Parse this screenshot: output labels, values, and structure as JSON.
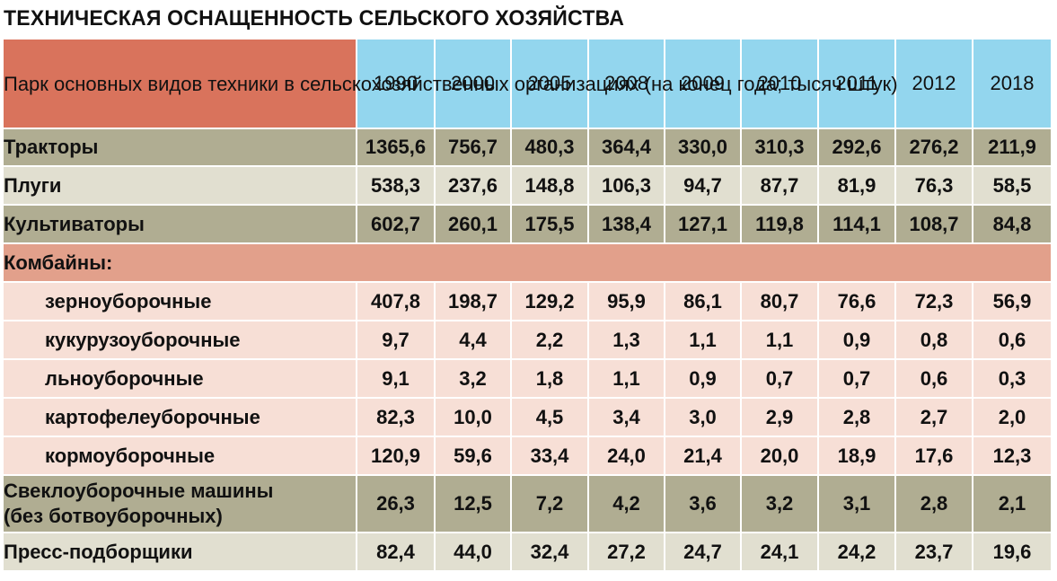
{
  "title": "ТЕХНИЧЕСКАЯ ОСНАЩЕННОСТЬ СЕЛЬСКОГО ХОЗЯЙСТВА",
  "table": {
    "header_label": "Парк основных видов техники в сельскохозяйственных организациях (на конец года; тысяч штук)",
    "years": [
      "1990",
      "2000",
      "2005",
      "2008",
      "2009",
      "2010",
      "2011",
      "2012",
      "2018"
    ],
    "rows": [
      {
        "label": "Тракторы",
        "values": [
          "1365,6",
          "756,7",
          "480,3",
          "364,4",
          "330,0",
          "310,3",
          "292,6",
          "276,2",
          "211,9"
        ]
      },
      {
        "label": "Плуги",
        "values": [
          "538,3",
          "237,6",
          "148,8",
          "106,3",
          "94,7",
          "87,7",
          "81,9",
          "76,3",
          "58,5"
        ]
      },
      {
        "label": "Культиваторы",
        "values": [
          "602,7",
          "260,1",
          "175,5",
          "138,4",
          "127,1",
          "119,8",
          "114,1",
          "108,7",
          "84,8"
        ]
      }
    ],
    "section_label": "Комбайны:",
    "sub_rows": [
      {
        "label": "зерноуборочные",
        "values": [
          "407,8",
          "198,7",
          "129,2",
          "95,9",
          "86,1",
          "80,7",
          "76,6",
          "72,3",
          "56,9"
        ]
      },
      {
        "label": "кукурузоуборочные",
        "values": [
          "9,7",
          "4,4",
          "2,2",
          "1,3",
          "1,1",
          "1,1",
          "0,9",
          "0,8",
          "0,6"
        ]
      },
      {
        "label": "льноуборочные",
        "values": [
          "9,1",
          "3,2",
          "1,8",
          "1,1",
          "0,9",
          "0,7",
          "0,7",
          "0,6",
          "0,3"
        ]
      },
      {
        "label": "картофелеуборочные",
        "values": [
          "82,3",
          "10,0",
          "4,5",
          "3,4",
          "3,0",
          "2,9",
          "2,8",
          "2,7",
          "2,0"
        ]
      },
      {
        "label": "кормоуборочные",
        "values": [
          "120,9",
          "59,6",
          "33,4",
          "24,0",
          "21,4",
          "20,0",
          "18,9",
          "17,6",
          "12,3"
        ]
      }
    ],
    "bottom_rows": [
      {
        "label_line1": "Свеклоуборочные машины",
        "label_line2": "(без ботвоуборочных)",
        "values": [
          "26,3",
          "12,5",
          "7,2",
          "4,2",
          "3,6",
          "3,2",
          "3,1",
          "2,8",
          "2,1"
        ]
      },
      {
        "label": "Пресс-подборщики",
        "values": [
          "82,4",
          "44,0",
          "32,4",
          "27,2",
          "24,7",
          "24,1",
          "24,2",
          "23,7",
          "19,6"
        ]
      }
    ]
  }
}
